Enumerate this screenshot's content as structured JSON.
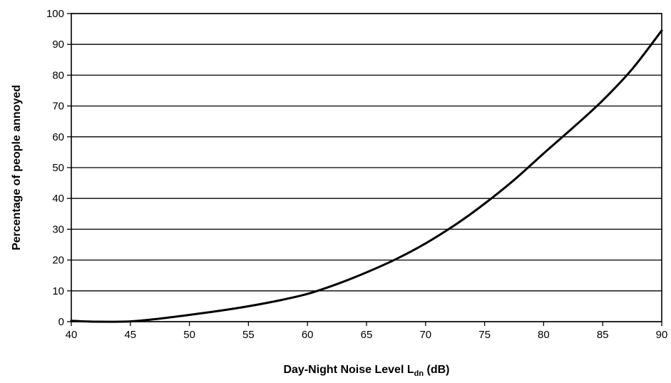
{
  "chart_data": {
    "type": "line",
    "title": "",
    "xlabel": "Day-Night Noise Level L",
    "xlabel_subscript": "dn",
    "xlabel_suffix": " (dB)",
    "ylabel": "Percentage of people annoyed",
    "xlim": [
      40,
      90
    ],
    "ylim": [
      0,
      100
    ],
    "xticks": [
      40,
      45,
      50,
      55,
      60,
      65,
      70,
      75,
      80,
      85,
      90
    ],
    "yticks": [
      0,
      10,
      20,
      30,
      40,
      50,
      60,
      70,
      80,
      90,
      100
    ],
    "grid": "horizontal",
    "legend": "none",
    "series": [
      {
        "color": "#000000",
        "x": [
          40,
          42,
          45,
          47.5,
          50,
          52.5,
          55,
          57.5,
          60,
          62.5,
          65,
          67.5,
          70,
          72.5,
          75,
          77.5,
          80,
          82.5,
          85,
          87.5,
          90
        ],
        "y": [
          0.3,
          0,
          0.1,
          1.0,
          2.2,
          3.5,
          5.0,
          6.8,
          9.0,
          12.2,
          16.0,
          20.3,
          25.4,
          31.4,
          38.3,
          46.0,
          54.6,
          63.0,
          71.8,
          82.0,
          94.5
        ]
      }
    ]
  }
}
